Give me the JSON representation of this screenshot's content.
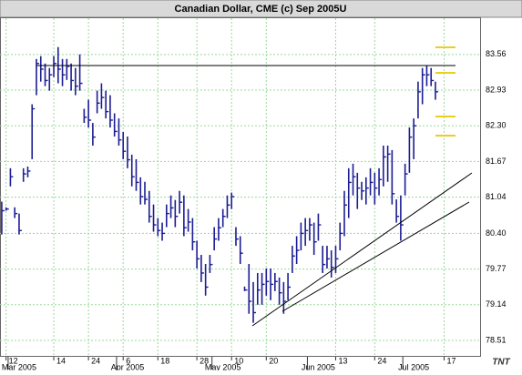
{
  "chart_data": {
    "type": "ohlc",
    "title": "Canadian Dollar, CME (c) Sep 2005U",
    "color": "#1c1c94",
    "high": [
      80.96,
      80.86,
      81.55,
      80.86,
      80.75,
      81.55,
      81.58,
      82.68,
      83.48,
      83.53,
      83.4,
      83.32,
      83.53,
      83.69,
      83.48,
      83.48,
      83.4,
      83.32,
      83.56,
      82.6,
      82.76,
      82.35,
      82.92,
      83.05,
      82.92,
      82.84,
      82.52,
      82.43,
      82.19,
      82.11,
      81.79,
      81.71,
      81.39,
      81.31,
      81.15,
      80.91,
      80.67,
      80.59,
      80.91,
      81.07,
      80.99,
      81.15,
      81.07,
      80.83,
      80.67,
      80.27,
      80.02,
      79.86,
      80.02,
      80.51,
      80.67,
      80.83,
      81.07,
      81.12,
      80.51,
      80.35,
      79.46,
      79.86,
      79.54,
      79.7,
      79.7,
      79.78,
      79.78,
      79.7,
      79.62,
      79.54,
      79.7,
      80.18,
      80.35,
      80.59,
      80.67,
      80.67,
      80.59,
      80.75,
      80.18,
      80.18,
      80.1,
      80.18,
      80.59,
      81.15,
      81.55,
      81.63,
      81.47,
      81.31,
      81.39,
      81.55,
      81.47,
      81.55,
      81.95,
      81.95,
      81.87,
      81.0,
      81.07,
      81.63,
      82.27,
      82.43,
      83.08,
      83.32,
      83.37,
      83.32,
      83.08
    ],
    "low": [
      80.38,
      80.8,
      81.23,
      80.67,
      80.38,
      81.31,
      81.39,
      81.71,
      82.84,
      83.08,
      83.0,
      82.92,
      83.16,
      83.05,
      83.0,
      83.11,
      82.92,
      82.84,
      82.92,
      82.35,
      82.27,
      81.95,
      82.52,
      82.6,
      82.43,
      82.27,
      82.11,
      81.95,
      81.71,
      81.55,
      81.23,
      81.15,
      80.91,
      80.91,
      80.59,
      80.43,
      80.35,
      80.27,
      80.51,
      80.67,
      80.51,
      80.75,
      80.35,
      80.43,
      80.1,
      79.78,
      79.54,
      79.3,
      79.7,
      80.1,
      80.27,
      80.51,
      80.67,
      80.83,
      80.18,
      79.86,
      79.38,
      78.98,
      78.82,
      79.14,
      79.14,
      79.3,
      79.22,
      79.38,
      79.14,
      78.98,
      79.22,
      79.7,
      79.86,
      80.1,
      80.18,
      80.27,
      80.02,
      80.27,
      79.7,
      79.78,
      79.62,
      79.7,
      80.1,
      80.35,
      80.67,
      81.07,
      80.83,
      80.99,
      80.91,
      81.07,
      80.91,
      81.07,
      81.23,
      81.31,
      80.91,
      80.59,
      80.27,
      81.07,
      81.47,
      81.71,
      82.43,
      82.68,
      83.0,
      83.0,
      82.76
    ],
    "close": [
      80.8,
      80.83,
      81.4,
      80.75,
      80.45,
      81.45,
      81.5,
      82.6,
      83.4,
      83.3,
      83.1,
      83.2,
      83.4,
      83.3,
      83.2,
      83.35,
      83.1,
      83.0,
      83.05,
      82.45,
      82.4,
      82.1,
      82.7,
      82.8,
      82.55,
      82.4,
      82.2,
      82.05,
      81.85,
      81.7,
      81.4,
      81.3,
      81.05,
      81.0,
      80.7,
      80.55,
      80.45,
      80.4,
      80.75,
      80.85,
      80.7,
      80.95,
      80.5,
      80.6,
      80.25,
      79.95,
      79.7,
      79.45,
      79.85,
      80.3,
      80.5,
      80.7,
      80.9,
      81.05,
      80.3,
      80.05,
      79.4,
      79.2,
      79.0,
      79.4,
      79.5,
      79.55,
      79.5,
      79.55,
      79.35,
      79.2,
      79.45,
      80.0,
      80.1,
      80.4,
      80.45,
      80.55,
      80.25,
      80.55,
      79.85,
      79.95,
      79.8,
      79.95,
      80.4,
      80.9,
      81.3,
      81.4,
      81.2,
      81.15,
      81.2,
      81.3,
      81.2,
      81.35,
      81.75,
      81.8,
      81.1,
      80.7,
      80.55,
      81.45,
      82.1,
      82.3,
      82.9,
      83.2,
      83.2,
      83.1,
      82.9
    ],
    "xlim": [
      -0.4,
      110.3
    ],
    "xticks": [
      {
        "value": 1,
        "label": "12"
      },
      {
        "value": 12,
        "label": "14"
      },
      {
        "value": 20,
        "label": "24"
      },
      {
        "value": 28,
        "label": "6"
      },
      {
        "value": 36,
        "label": "18"
      },
      {
        "value": 45,
        "label": "28"
      },
      {
        "value": 53,
        "label": "10"
      },
      {
        "value": 61,
        "label": "20"
      },
      {
        "value": 77,
        "label": "13"
      },
      {
        "value": 86,
        "label": "24"
      },
      {
        "value": 102,
        "label": "17"
      }
    ],
    "month_labels": [
      {
        "value": 4,
        "label": "Mar 2005"
      },
      {
        "value": 29,
        "label": "Apr 2005"
      },
      {
        "value": 51,
        "label": "May 2005"
      },
      {
        "value": 73,
        "label": "Jun 2005"
      },
      {
        "value": 95,
        "label": "Jul 2005"
      }
    ],
    "ylim": [
      78.22,
      84.2
    ],
    "yticks": [
      83.56,
      82.93,
      {
        "value": 82.3,
        "label": "82.30"
      },
      81.67,
      81.04,
      {
        "value": 80.4,
        "label": "80.40"
      },
      79.77,
      79.14,
      78.51
    ],
    "grid": true
  },
  "logo": "TNT"
}
